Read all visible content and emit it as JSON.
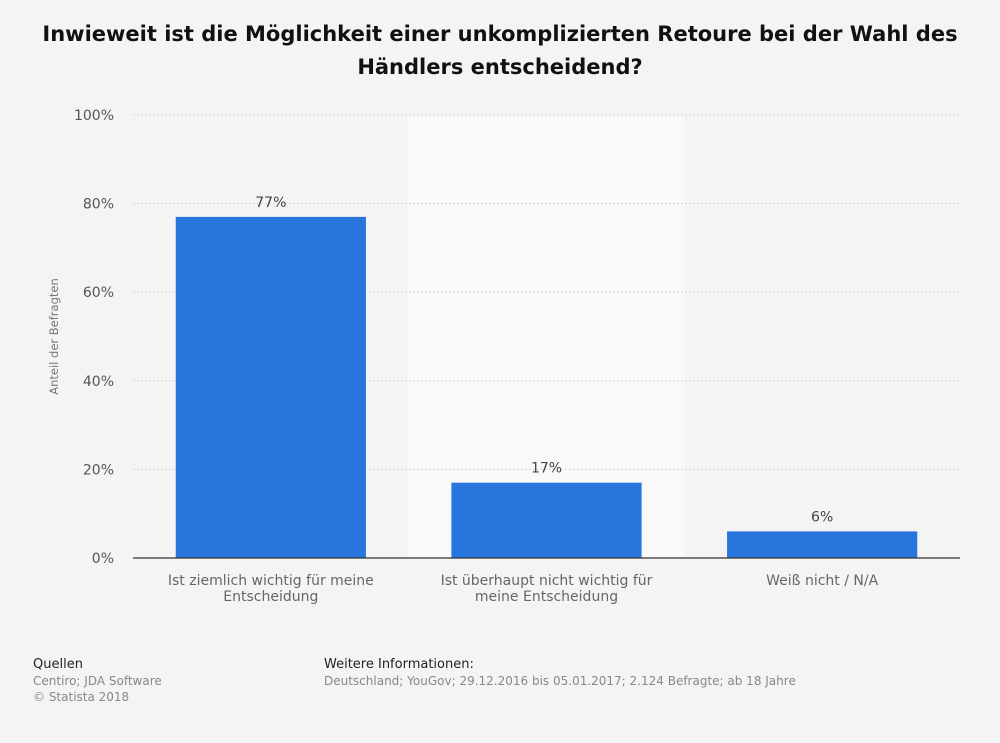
{
  "title": "Inwieweit ist die Möglichkeit einer unkomplizierten Retoure bei der Wahl des Händlers entscheidend?",
  "chart_data": {
    "type": "bar",
    "title": "Inwieweit ist die Möglichkeit einer unkomplizierten Retoure bei der Wahl des Händlers entscheidend?",
    "categories": [
      [
        "Ist ziemlich wichtig für meine",
        "Entscheidung"
      ],
      [
        "Ist überhaupt nicht wichtig für",
        "meine Entscheidung"
      ],
      [
        "Weiß nicht / N/A"
      ]
    ],
    "values": [
      77,
      17,
      6
    ],
    "data_labels": [
      "77%",
      "17%",
      "6%"
    ],
    "xlabel": "",
    "ylabel": "Anteil der Befragten",
    "ylim": [
      0,
      100
    ],
    "yticks": [
      0,
      20,
      40,
      60,
      80,
      100
    ],
    "ytick_labels": [
      "0%",
      "20%",
      "40%",
      "60%",
      "80%",
      "100%"
    ],
    "grid": true,
    "bar_color": "#2876dd"
  },
  "footer": {
    "sources_heading": "Quellen",
    "sources_lines": [
      "Centiro; JDA Software",
      "© Statista 2018"
    ],
    "info_heading": "Weitere Informationen:",
    "info_text": "Deutschland; YouGov; 29.12.2016 bis 05.01.2017; 2.124 Befragte; ab 18 Jahre"
  }
}
